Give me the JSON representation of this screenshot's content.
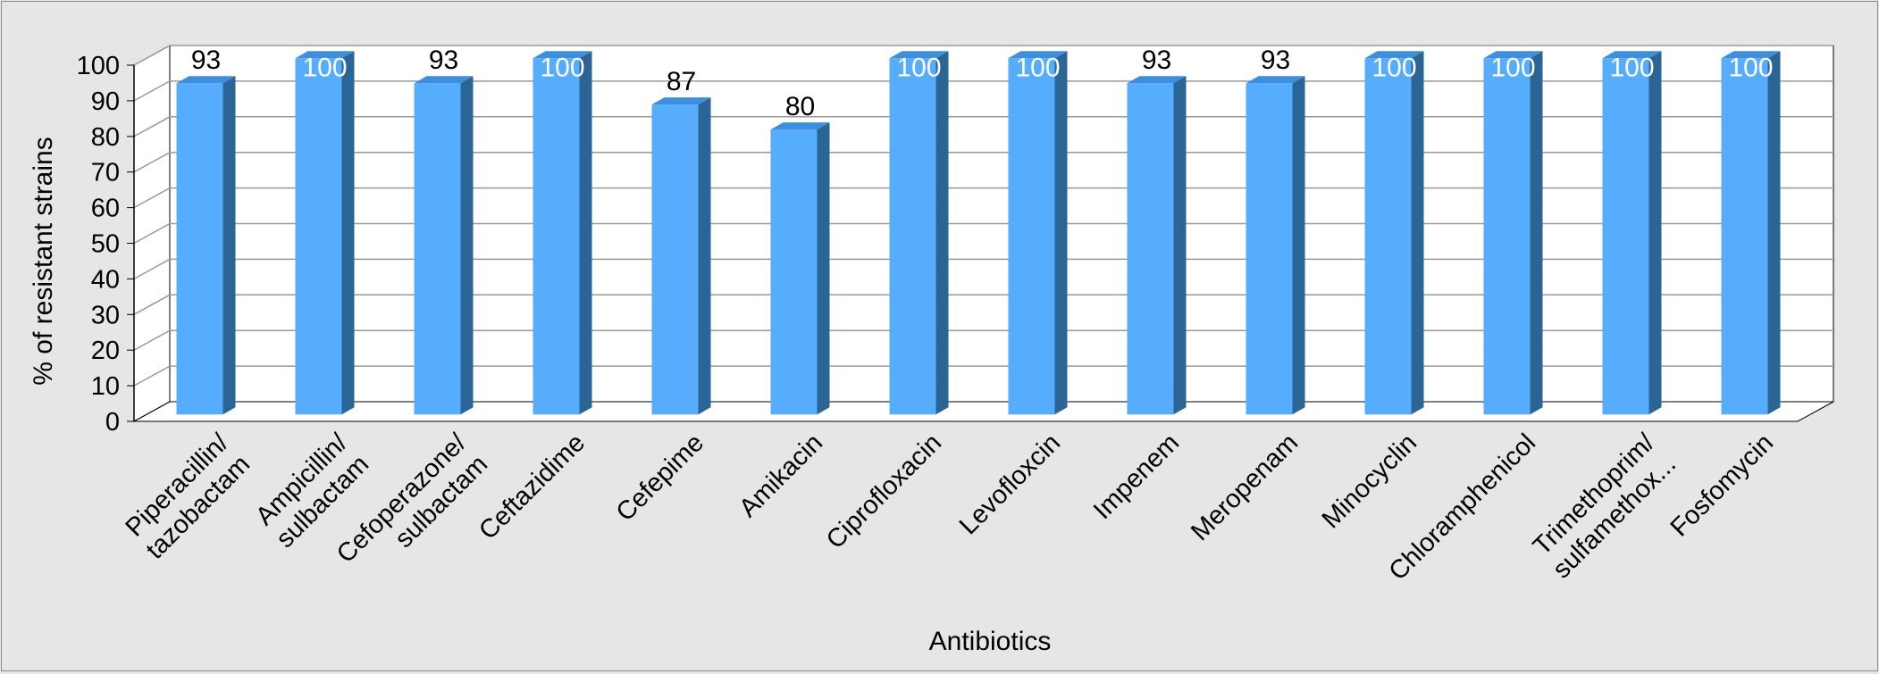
{
  "chart_data": {
    "type": "bar",
    "style": "3d-column",
    "title": "",
    "xlabel": "Antibiotics",
    "ylabel": "% of resistant strains",
    "ylim": [
      0,
      100
    ],
    "yticks": [
      0,
      10,
      20,
      30,
      40,
      50,
      60,
      70,
      80,
      90,
      100
    ],
    "grid": true,
    "legend": "none",
    "categories": [
      [
        "Piperacillin/",
        "tazobactam"
      ],
      [
        "Ampicillin/",
        "sulbactam"
      ],
      [
        "Cefoperazone/",
        "sulbactam"
      ],
      [
        "Ceftazidime"
      ],
      [
        "Cefepime"
      ],
      [
        "Amikacin"
      ],
      [
        "Ciprofloxacin"
      ],
      [
        "Levofloxcin"
      ],
      [
        "Impenem"
      ],
      [
        "Meropenam"
      ],
      [
        "Minocyclin"
      ],
      [
        "Chloramphenicol"
      ],
      [
        "Trimethoprim/",
        "sulfamethox..."
      ],
      [
        "Fosfomycin"
      ]
    ],
    "values": [
      93,
      100,
      93,
      100,
      87,
      80,
      100,
      100,
      93,
      93,
      100,
      100,
      100,
      100
    ],
    "data_labels": [
      "93",
      "100",
      "93",
      "100",
      "87",
      "80",
      "100",
      "100",
      "93",
      "93",
      "100",
      "100",
      "100",
      "100"
    ],
    "colors": {
      "bar_front": "#57adfd",
      "bar_top": "#3b8ee0",
      "bar_side": "#2a6595",
      "background": "#e6e6e6",
      "plot_wall": "#ffffff",
      "gridline": "#9a9a9a"
    }
  }
}
